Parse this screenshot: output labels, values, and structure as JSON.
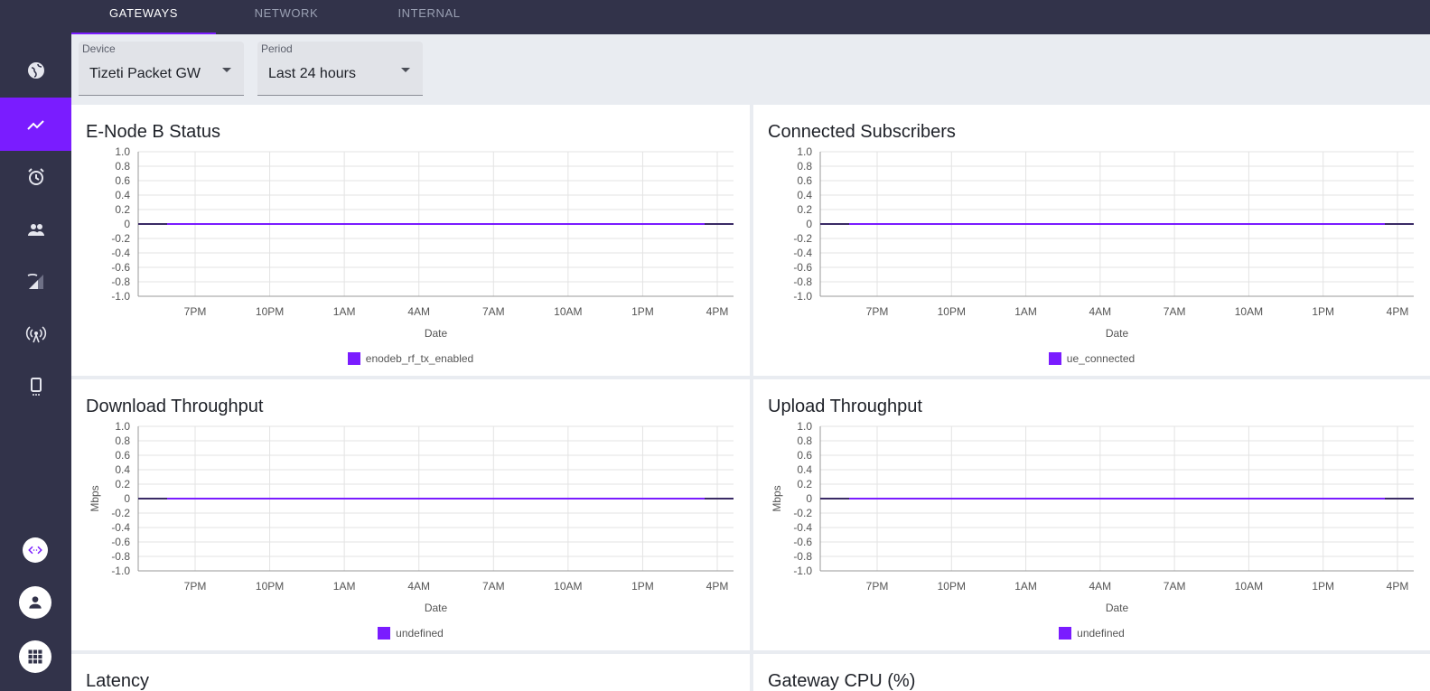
{
  "nav": {
    "tabs": [
      {
        "label": "GATEWAYS"
      },
      {
        "label": "NETWORK"
      },
      {
        "label": "INTERNAL"
      }
    ]
  },
  "filters": {
    "device": {
      "label": "Device",
      "value": "Tizeti Packet GW"
    },
    "period": {
      "label": "Period",
      "value": "Last 24 hours"
    }
  },
  "colors": {
    "accent": "#7a1cff",
    "sidebar": "#32334a"
  },
  "sidebar_icons": [
    "globe-icon",
    "trending-up-icon",
    "alarm-icon",
    "people-icon",
    "signal-cellular-icon",
    "access-point-icon",
    "phone-android-icon"
  ],
  "cards": [
    {
      "title": "E-Node B Status",
      "legend": "enodeb_rf_tx_enabled"
    },
    {
      "title": "Connected Subscribers",
      "legend": "ue_connected"
    },
    {
      "title": "Download Throughput",
      "legend": "undefined"
    },
    {
      "title": "Upload Throughput",
      "legend": "undefined"
    },
    {
      "title": "Latency",
      "legend": ""
    },
    {
      "title": "Gateway CPU (%)",
      "legend": ""
    }
  ],
  "chart_data": [
    {
      "type": "line",
      "title": "E-Node B Status",
      "xlabel": "Date",
      "ylabel": "",
      "x_ticks": [
        "7PM",
        "10PM",
        "1AM",
        "4AM",
        "7AM",
        "10AM",
        "1PM",
        "4PM"
      ],
      "y_ticks": [
        "1.0",
        "0.8",
        "0.6",
        "0.4",
        "0.2",
        "0",
        "-0.2",
        "-0.4",
        "-0.6",
        "-0.8",
        "-1.0"
      ],
      "ylim": [
        -1.0,
        1.0
      ],
      "series": [
        {
          "name": "enodeb_rf_tx_enabled",
          "values": [
            0,
            0,
            0,
            0,
            0,
            0,
            0,
            0
          ]
        }
      ]
    },
    {
      "type": "line",
      "title": "Connected Subscribers",
      "xlabel": "Date",
      "ylabel": "",
      "x_ticks": [
        "7PM",
        "10PM",
        "1AM",
        "4AM",
        "7AM",
        "10AM",
        "1PM",
        "4PM"
      ],
      "y_ticks": [
        "1.0",
        "0.8",
        "0.6",
        "0.4",
        "0.2",
        "0",
        "-0.2",
        "-0.4",
        "-0.6",
        "-0.8",
        "-1.0"
      ],
      "ylim": [
        -1.0,
        1.0
      ],
      "series": [
        {
          "name": "ue_connected",
          "values": [
            0,
            0,
            0,
            0,
            0,
            0,
            0,
            0
          ]
        }
      ]
    },
    {
      "type": "line",
      "title": "Download Throughput",
      "xlabel": "Date",
      "ylabel": "Mbps",
      "x_ticks": [
        "7PM",
        "10PM",
        "1AM",
        "4AM",
        "7AM",
        "10AM",
        "1PM",
        "4PM"
      ],
      "y_ticks": [
        "1.0",
        "0.8",
        "0.6",
        "0.4",
        "0.2",
        "0",
        "-0.2",
        "-0.4",
        "-0.6",
        "-0.8",
        "-1.0"
      ],
      "ylim": [
        -1.0,
        1.0
      ],
      "series": [
        {
          "name": "undefined",
          "values": [
            0,
            0,
            0,
            0,
            0,
            0,
            0,
            0
          ]
        }
      ]
    },
    {
      "type": "line",
      "title": "Upload Throughput",
      "xlabel": "Date",
      "ylabel": "Mbps",
      "x_ticks": [
        "7PM",
        "10PM",
        "1AM",
        "4AM",
        "7AM",
        "10AM",
        "1PM",
        "4PM"
      ],
      "y_ticks": [
        "1.0",
        "0.8",
        "0.6",
        "0.4",
        "0.2",
        "0",
        "-0.2",
        "-0.4",
        "-0.6",
        "-0.8",
        "-1.0"
      ],
      "ylim": [
        -1.0,
        1.0
      ],
      "series": [
        {
          "name": "undefined",
          "values": [
            0,
            0,
            0,
            0,
            0,
            0,
            0,
            0
          ]
        }
      ]
    }
  ]
}
